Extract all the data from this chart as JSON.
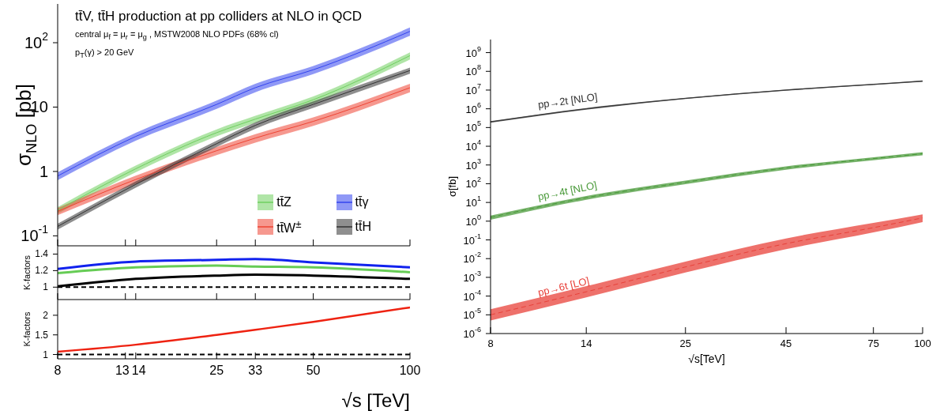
{
  "chart_data": [
    {
      "type": "line",
      "title": "tt̄V, tt̄H production at pp colliders at NLO in QCD",
      "subtitle": "central μ$_{f}$ = μ$_{r}$ = μ$_{g}$ , MSTW2008 NLO PDFs (68% cl)",
      "annotations": [
        "p$_{T}$(γ) > 20 GeV"
      ],
      "ylabel": "σ$_{NLO}$ [pb]",
      "x": [
        8,
        14,
        25,
        33,
        50,
        100
      ],
      "log": "xy",
      "xlim": [
        8,
        100
      ],
      "xticks": [
        {
          "value": 8,
          "label": null
        },
        {
          "value": 13,
          "label": null
        },
        {
          "value": 14,
          "label": null
        },
        {
          "value": 25,
          "label": null
        },
        {
          "value": 33,
          "label": null
        },
        {
          "value": 50,
          "label": null
        },
        {
          "value": 100,
          "label": null
        }
      ],
      "ylim": [
        0.07,
        400
      ],
      "yticks": [
        {
          "value": 0.1,
          "label": "10$^{-1}$"
        },
        1,
        10,
        {
          "value": 100,
          "label": "10$^{2}$"
        }
      ],
      "tick_labels": "y",
      "legend": "bottom right",
      "series": [
        {
          "name": "tt̄Z",
          "color": "#6fcf5f",
          "values": [
            0.25,
            1.1,
            4,
            6.5,
            13,
            63
          ],
          "lower": [
            0.22,
            0.97,
            3.5,
            5.7,
            11.4,
            55
          ],
          "upper": [
            0.28,
            1.23,
            4.5,
            7.3,
            14.6,
            71
          ]
        },
        {
          "name": "tt̄γ",
          "color": "#3344ee",
          "values": [
            0.85,
            3.5,
            11,
            20,
            38,
            150
          ],
          "lower": [
            0.73,
            3,
            9.4,
            17,
            32.5,
            128
          ],
          "upper": [
            0.97,
            4,
            12.6,
            23,
            43.5,
            172
          ]
        },
        {
          "name": "tt̄W$^{±}$",
          "color": "#ee4433",
          "values": [
            0.24,
            0.75,
            2.1,
            3.3,
            6,
            20
          ],
          "lower": [
            0.21,
            0.64,
            1.8,
            2.8,
            5.1,
            17
          ],
          "upper": [
            0.27,
            0.86,
            2.4,
            3.8,
            6.9,
            23
          ]
        },
        {
          "name": "tt̄H",
          "color": "#333333",
          "values": [
            0.14,
            0.63,
            2.7,
            5.2,
            11,
            37
          ],
          "lower": [
            0.125,
            0.56,
            2.4,
            4.6,
            9.7,
            33
          ],
          "upper": [
            0.155,
            0.7,
            3,
            5.8,
            12.3,
            41
          ]
        }
      ]
    },
    {
      "type": "line",
      "x": [
        8,
        14,
        25,
        33,
        50,
        100
      ],
      "log": "x",
      "xlim": [
        8,
        100
      ],
      "xticks": [
        {
          "value": 8,
          "label": null
        },
        {
          "value": 13,
          "label": null
        },
        {
          "value": 14,
          "label": null
        },
        {
          "value": 25,
          "label": null
        },
        {
          "value": 33,
          "label": null
        },
        {
          "value": 50,
          "label": null
        },
        {
          "value": 100,
          "label": null
        }
      ],
      "ylabel": "K-factors",
      "ylim": [
        0.85,
        1.5
      ],
      "yticks": [
        1,
        1.2,
        1.4
      ],
      "tick_labels": "y",
      "ref_lines": [
        {
          "axis": "y",
          "value": 1,
          "color": "#000000",
          "line_style": "dashed"
        }
      ],
      "series": [
        {
          "color": "#1122ee",
          "values": [
            1.22,
            1.31,
            1.33,
            1.34,
            1.3,
            1.24
          ]
        },
        {
          "color": "#66cc55",
          "values": [
            1.17,
            1.24,
            1.26,
            1.25,
            1.24,
            1.18
          ]
        },
        {
          "color": "#000000",
          "values": [
            1.01,
            1.1,
            1.14,
            1.15,
            1.14,
            1.1
          ]
        }
      ]
    },
    {
      "type": "line",
      "x": [
        8,
        14,
        25,
        33,
        50,
        100
      ],
      "log": "x",
      "xlim": [
        8,
        100
      ],
      "xticks": [
        8,
        13,
        14,
        25,
        33,
        50,
        100
      ],
      "ylabel": "K-factors",
      "xlabel": "√s [TeV]",
      "ylim": [
        0.89,
        2.4
      ],
      "yticks": [
        1,
        1.5,
        2
      ],
      "ref_lines": [
        {
          "axis": "y",
          "value": 1,
          "color": "#000000",
          "line_style": "dashed"
        }
      ],
      "series": [
        {
          "color": "#ee2211",
          "values": [
            1.07,
            1.25,
            1.5,
            1.63,
            1.83,
            2.2
          ]
        }
      ]
    },
    {
      "type": "line",
      "x": [
        8,
        14,
        25,
        45,
        75,
        100
      ],
      "log": "xy",
      "xlim": [
        8,
        100
      ],
      "xticks": [
        8,
        14,
        25,
        45,
        75,
        100
      ],
      "ylabel": "σ[fb]",
      "xlabel": "√s[TeV]",
      "ylim": [
        1e-06,
        5000000000.0
      ],
      "yticks": [
        {
          "value": 1e-06,
          "label": "10$^{-6}$"
        },
        {
          "value": 1e-05,
          "label": "10$^{-5}$"
        },
        {
          "value": 0.0001,
          "label": "10$^{-4}$"
        },
        {
          "value": 0.001,
          "label": "10$^{-3}$"
        },
        {
          "value": 0.01,
          "label": "10$^{-2}$"
        },
        {
          "value": 0.1,
          "label": "10$^{-1}$"
        },
        {
          "value": 1,
          "label": "10$^{0}$"
        },
        {
          "value": 10,
          "label": "10$^{1}$"
        },
        {
          "value": 100,
          "label": "10$^{2}$"
        },
        {
          "value": 1000,
          "label": "10$^{3}$"
        },
        {
          "value": 10000.0,
          "label": "10$^{4}$"
        },
        {
          "value": 100000.0,
          "label": "10$^{5}$"
        },
        {
          "value": 1000000.0,
          "label": "10$^{6}$"
        },
        {
          "value": 10000000.0,
          "label": "10$^{7}$"
        },
        {
          "value": 100000000.0,
          "label": "10$^{8}$"
        },
        {
          "value": 1000000000.0,
          "label": "10$^{9}$"
        }
      ],
      "series": [
        {
          "name": "pp→2t [NLO]",
          "color": "#333333",
          "line_style": "solid",
          "values": [
            200000.0,
            1000000.0,
            3600000.0,
            10000000.0,
            20000000.0,
            30000000.0
          ],
          "lower": [
            180000.0,
            900000.0,
            3300000.0,
            9200000.0,
            18500000.0,
            27500000.0
          ],
          "upper": [
            220000.0,
            1100000.0,
            3900000.0,
            10800000.0,
            21500000.0,
            32500000.0
          ]
        },
        {
          "name": "pp→4t [NLO]",
          "color": "#4a9a3a",
          "line_style": "dashed",
          "values": [
            1.6,
            18,
            120,
            700,
            2200,
            4000
          ],
          "lower": [
            1.2,
            14,
            95,
            560,
            1800,
            3300
          ],
          "upper": [
            2,
            22,
            145,
            840,
            2600,
            4800
          ]
        },
        {
          "name": "pp→6t [LO]",
          "color": "#e8413a",
          "line_style": "dashed",
          "values": [
            1e-05,
            0.00017,
            0.0036,
            0.063,
            0.45,
            1.5
          ],
          "lower": [
            5e-06,
            8.5e-05,
            0.0018,
            0.032,
            0.25,
            0.9
          ],
          "upper": [
            2e-05,
            0.00034,
            0.007,
            0.12,
            0.8,
            2.3
          ]
        }
      ]
    }
  ]
}
